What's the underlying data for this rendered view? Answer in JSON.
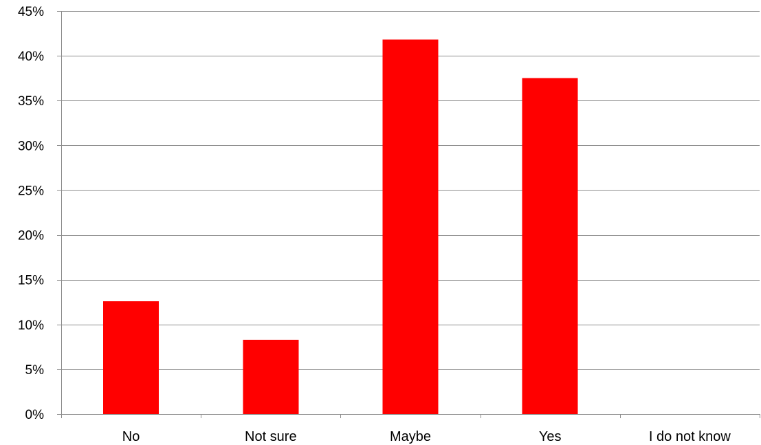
{
  "chart_data": {
    "type": "bar",
    "categories": [
      "No",
      "Not sure",
      "Maybe",
      "Yes",
      "I do not know"
    ],
    "values": [
      12.6,
      8.3,
      41.8,
      37.5,
      0
    ],
    "ylim": [
      0,
      45
    ],
    "y_ticks": [
      0,
      5,
      10,
      15,
      20,
      25,
      30,
      35,
      40,
      45
    ],
    "y_tick_labels": [
      "0%",
      "5%",
      "10%",
      "15%",
      "20%",
      "25%",
      "30%",
      "35%",
      "40%",
      "45%"
    ],
    "grid": true,
    "legend": "none",
    "bar_color": "#ff0000",
    "title": "",
    "xlabel": "",
    "ylabel": ""
  }
}
